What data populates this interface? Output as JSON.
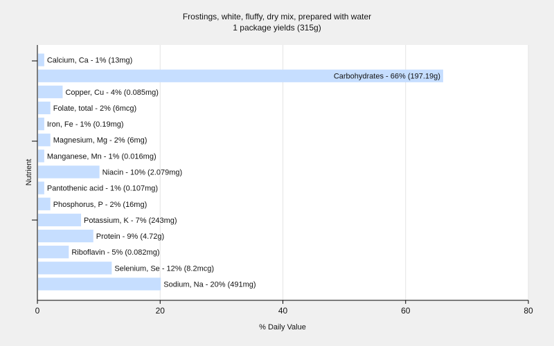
{
  "chart_data": {
    "type": "bar",
    "orientation": "horizontal",
    "title": "Frostings, white, fluffy, dry mix, prepared with water",
    "subtitle": "1 package yields (315g)",
    "xlabel": "% Daily Value",
    "ylabel": "Nutrient",
    "xlim": [
      0,
      80
    ],
    "xticks": [
      0,
      20,
      40,
      60,
      80
    ],
    "grid": true,
    "legend": "none",
    "bar_color": "#c6deff",
    "categories": [
      "Calcium, Ca",
      "Carbohydrates",
      "Copper, Cu",
      "Folate, total",
      "Iron, Fe",
      "Magnesium, Mg",
      "Manganese, Mn",
      "Niacin",
      "Pantothenic acid",
      "Phosphorus, P",
      "Potassium, K",
      "Protein",
      "Riboflavin",
      "Selenium, Se",
      "Sodium, Na"
    ],
    "values": [
      1,
      66,
      4,
      2,
      1,
      2,
      1,
      10,
      1,
      2,
      7,
      9,
      5,
      12,
      20
    ],
    "labels": [
      "Calcium, Ca - 1% (13mg)",
      "Carbohydrates - 66% (197.19g)",
      "Copper, Cu - 4% (0.085mg)",
      "Folate, total - 2% (6mcg)",
      "Iron, Fe - 1% (0.19mg)",
      "Magnesium, Mg - 2% (6mg)",
      "Manganese, Mn - 1% (0.016mg)",
      "Niacin - 10% (2.079mg)",
      "Pantothenic acid - 1% (0.107mg)",
      "Phosphorus, P - 2% (16mg)",
      "Potassium, K - 7% (243mg)",
      "Protein - 9% (4.72g)",
      "Riboflavin - 5% (0.082mg)",
      "Selenium, Se - 12% (8.2mcg)",
      "Sodium, Na - 20% (491mg)"
    ]
  }
}
